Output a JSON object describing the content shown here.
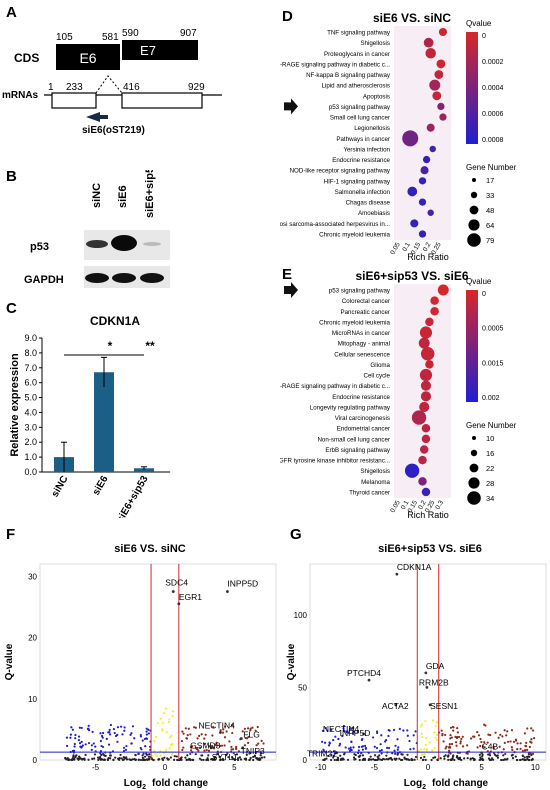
{
  "panel_labels": {
    "A": "A",
    "B": "B",
    "C": "C",
    "D": "D",
    "E": "E",
    "F": "F",
    "G": "G"
  },
  "panelA": {
    "cds_label": "CDS",
    "mrnas_label": "mRNAs",
    "e6_label": "E6",
    "e7_label": "E7",
    "n105": "105",
    "n581": "581",
    "n590": "590",
    "n907": "907",
    "n1": "1",
    "n233": "233",
    "n416": "416",
    "n929": "929",
    "sirna_label": "siE6(oST219)"
  },
  "panelB": {
    "lanes": [
      "siNC",
      "siE6",
      "siE6+sip53"
    ],
    "rows": [
      "p53",
      "GAPDH"
    ]
  },
  "colors": {
    "bar": "#1b5e86",
    "red": "#d62728",
    "blue": "#1f1fd0",
    "yellow": "#f2ef2a",
    "brown": "#8b2a1a"
  },
  "panelC": {
    "title": "CDKN1A",
    "ylabel": "Relative expression",
    "sig1": "*",
    "sig2": "**",
    "chart_data": {
      "type": "bar",
      "categories": [
        "siNC",
        "siE6",
        "siE6+sip53"
      ],
      "values": [
        1.0,
        6.7,
        0.25
      ],
      "errors": [
        1.0,
        1.0,
        0.1
      ],
      "ylim": [
        0,
        9
      ],
      "yticks": [
        "0.0",
        "1.0",
        "2.0",
        "3.0",
        "4.0",
        "5.0",
        "6.0",
        "7.0",
        "8.0",
        "9.0"
      ]
    }
  },
  "panelD": {
    "title": "siE6 VS. siNC",
    "xlabel": "Rich Ratio",
    "legend_q_title": "Qvalue",
    "q_ticks": [
      "0",
      "0.0002",
      "0.0004",
      "0.0006",
      "0.0008"
    ],
    "legend_gene_title": "Gene Number",
    "gene_sizes": [
      "17",
      "33",
      "48",
      "64",
      "79"
    ],
    "xticks": [
      "0.05",
      "0.1",
      "0.15",
      "0.2",
      "0.25"
    ],
    "chart_data": {
      "type": "scatter",
      "categories": [
        "TNF signaling pathway",
        "Shigellosis",
        "Proteoglycans in cancer",
        "AGE-RAGE signaling pathway in diabetic c...",
        "NF-kappa B signaling pathway",
        "Lipid and atherosclerosis",
        "Apoptosis",
        "p53 signaling pathway",
        "Small cell lung cancer",
        "Legionellosis",
        "Pathways in cancer",
        "Yersinia infection",
        "Endocrine resistance",
        "NOD-like receptor signaling pathway",
        "HIF-1 signaling pathway",
        "Salmonella infection",
        "Chagas disease",
        "Amoebiasis",
        "Kaposi sarcoma-associated herpesvirus in...",
        "Chronic myeloid leukemia"
      ],
      "rich_ratio": [
        0.26,
        0.19,
        0.2,
        0.25,
        0.24,
        0.22,
        0.23,
        0.25,
        0.26,
        0.2,
        0.1,
        0.21,
        0.18,
        0.17,
        0.16,
        0.11,
        0.16,
        0.2,
        0.12,
        0.16
      ],
      "qvalue": [
        5e-05,
        0.0002,
        0.0001,
        5e-05,
        0.0001,
        0.00025,
        0.0001,
        0.0004,
        0.0003,
        0.0003,
        0.0005,
        0.0007,
        0.0008,
        0.0007,
        0.0008,
        0.0008,
        0.0008,
        0.0007,
        0.0008,
        0.0008
      ],
      "gene_number": [
        30,
        40,
        45,
        35,
        35,
        48,
        35,
        25,
        25,
        30,
        79,
        20,
        25,
        30,
        25,
        40,
        25,
        20,
        30,
        25
      ]
    }
  },
  "panelE": {
    "title": "siE6+sip53 VS. siE6",
    "xlabel": "Rich Ratio",
    "legend_q_title": "Qvalue",
    "q_ticks": [
      "0",
      "0.0005",
      "0.0015",
      "0.002"
    ],
    "legend_gene_title": "Gene Number",
    "gene_sizes": [
      "10",
      "16",
      "22",
      "28",
      "34"
    ],
    "xticks": [
      "0.05",
      "0.1",
      "0.15",
      "0.2",
      "0.25",
      "0.3"
    ],
    "chart_data": {
      "type": "scatter",
      "categories": [
        "p53 signaling pathway",
        "Colorectal cancer",
        "Pancreatic cancer",
        "Chronic myeloid leukemia",
        "MicroRNAs in cancer",
        "Mitophagy - animal",
        "Cellular senescence",
        "Glioma",
        "Cell cycle",
        "AGE-RAGE signaling pathway in diabetic c...",
        "Endocrine resistance",
        "Longevity regulating pathway",
        "Viral carcinogenesis",
        "Endometrial cancer",
        "Non-small cell lung cancer",
        "ErbB signaling pathway",
        "EGFR tyrosine kinase inhibitor resistanc...",
        "Shigellosis",
        "Melanoma",
        "Thyroid cancer"
      ],
      "rich_ratio": [
        0.3,
        0.25,
        0.25,
        0.22,
        0.2,
        0.19,
        0.21,
        0.22,
        0.2,
        0.2,
        0.2,
        0.19,
        0.16,
        0.2,
        0.2,
        0.19,
        0.18,
        0.12,
        0.18,
        0.2
      ],
      "qvalue": [
        5e-05,
        0.0001,
        0.0001,
        0.0002,
        0.0002,
        0.0003,
        0.0002,
        0.0002,
        0.0003,
        0.0003,
        0.0003,
        0.0003,
        0.0005,
        0.0004,
        0.0003,
        0.0004,
        0.0004,
        0.0022,
        0.0012,
        0.002
      ],
      "gene_number": [
        22,
        16,
        16,
        16,
        25,
        22,
        28,
        16,
        25,
        20,
        20,
        20,
        30,
        16,
        16,
        16,
        16,
        30,
        16,
        16
      ]
    }
  },
  "panelF": {
    "title": "siE6 VS. siNC",
    "xlabel": "Log",
    "xlabel_sub": "2",
    "xlabel_rest": " fold change",
    "ylabel": "Q-value",
    "genes": [
      "SDC4",
      "EGR1",
      "INPP5D",
      "NECTIN4",
      "FLG",
      "GSMD3",
      "TNIP3",
      "SYTL1"
    ],
    "chart_data": {
      "type": "scatter",
      "xticks": [
        "-5",
        "0",
        "5"
      ],
      "yticks": [
        "0",
        "10",
        "20",
        "30"
      ],
      "xlim": [
        -9,
        8
      ],
      "ylim": [
        0,
        32
      ],
      "labeled_genes": {
        "x": [
          0.6,
          1.0,
          4.5,
          4.0,
          5.5,
          3.4,
          5.6,
          3.8
        ],
        "y": [
          27.5,
          25.5,
          27.5,
          4.5,
          3.5,
          2.2,
          2.0,
          1.0
        ]
      }
    }
  },
  "panelG": {
    "title": "siE6+sip53 VS. siE6",
    "xlabel": "Log",
    "xlabel_sub": "2",
    "xlabel_rest": " fold change",
    "ylabel": "Q-value",
    "genes": [
      "CDKN1A",
      "PTCHD4",
      "GDA",
      "RRM2B",
      "ACTA2",
      "SESN1",
      "NECTIN4",
      "INPP5D",
      "TRIM22",
      "C4B"
    ],
    "chart_data": {
      "type": "scatter",
      "xticks": [
        "-10",
        "-5",
        "0",
        "5",
        "10"
      ],
      "yticks": [
        "0",
        "50",
        "100"
      ],
      "xlim": [
        -11,
        11
      ],
      "ylim": [
        0,
        135
      ],
      "labeled_genes": {
        "x": [
          -2.9,
          -5.5,
          -0.2,
          -0.1,
          -3.0,
          0.2,
          -7.0,
          -6.0,
          -8.5,
          5.0
        ],
        "y": [
          128,
          55,
          60,
          50,
          38,
          38,
          22,
          18,
          5,
          5
        ]
      }
    }
  }
}
